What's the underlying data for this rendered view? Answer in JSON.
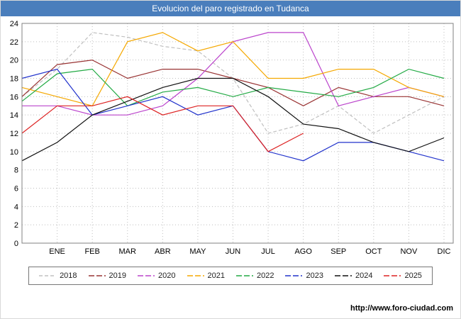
{
  "title": "Evolucion del paro registrado en Tudanca",
  "title_bar_color": "#4a7ebc",
  "footer": {
    "url": "http://www.foro-ciudad.com"
  },
  "chart_data": {
    "type": "line",
    "categories": [
      "ENE",
      "FEB",
      "MAR",
      "ABR",
      "MAY",
      "JUN",
      "JUL",
      "AGO",
      "SEP",
      "OCT",
      "NOV",
      "DIC"
    ],
    "ylabel": "",
    "xlabel": "",
    "ylim": [
      0,
      24
    ],
    "ytick_step": 2,
    "grid": true,
    "grid_style": "dotted",
    "legend_position": "bottom",
    "values_note": "index 0 of each values array is the point at the left axis edge (before ENE); indices 1-12 align with ENE-DIC",
    "series": [
      {
        "name": "2018",
        "color": "#c0c0c0",
        "dash": "5,3",
        "values": [
          16,
          19,
          23,
          22.5,
          21.5,
          21,
          18,
          12,
          13,
          15,
          12,
          14,
          16
        ]
      },
      {
        "name": "2019",
        "color": "#993333",
        "dash": "",
        "values": [
          16,
          19.5,
          20,
          18,
          19,
          19,
          18,
          17,
          15,
          17,
          16,
          16,
          15
        ]
      },
      {
        "name": "2020",
        "color": "#bb44cc",
        "dash": "",
        "values": [
          15,
          15,
          14,
          14,
          15,
          18,
          22,
          23,
          23,
          15,
          16,
          17,
          16
        ]
      },
      {
        "name": "2021",
        "color": "#f5a800",
        "dash": "",
        "values": [
          17,
          16,
          15,
          22,
          23,
          21,
          22,
          18,
          18,
          19,
          19,
          17,
          16
        ]
      },
      {
        "name": "2022",
        "color": "#22aa44",
        "dash": "",
        "values": [
          15.5,
          18.5,
          19,
          15,
          16.5,
          17,
          16,
          17,
          16.5,
          16,
          17,
          19,
          18
        ]
      },
      {
        "name": "2023",
        "color": "#2233cc",
        "dash": "",
        "values": [
          18,
          19,
          14,
          15,
          16,
          14,
          15,
          10,
          9,
          11,
          11,
          10,
          9
        ]
      },
      {
        "name": "2024",
        "color": "#111111",
        "dash": "",
        "values": [
          9,
          11,
          14,
          15.5,
          17,
          18,
          18,
          16,
          13,
          12.5,
          11,
          10,
          11.5
        ]
      },
      {
        "name": "2025",
        "color": "#dd2222",
        "dash": "",
        "values": [
          12,
          15,
          15,
          16,
          14,
          15,
          15,
          10,
          12,
          null,
          null,
          null,
          null
        ]
      }
    ]
  }
}
